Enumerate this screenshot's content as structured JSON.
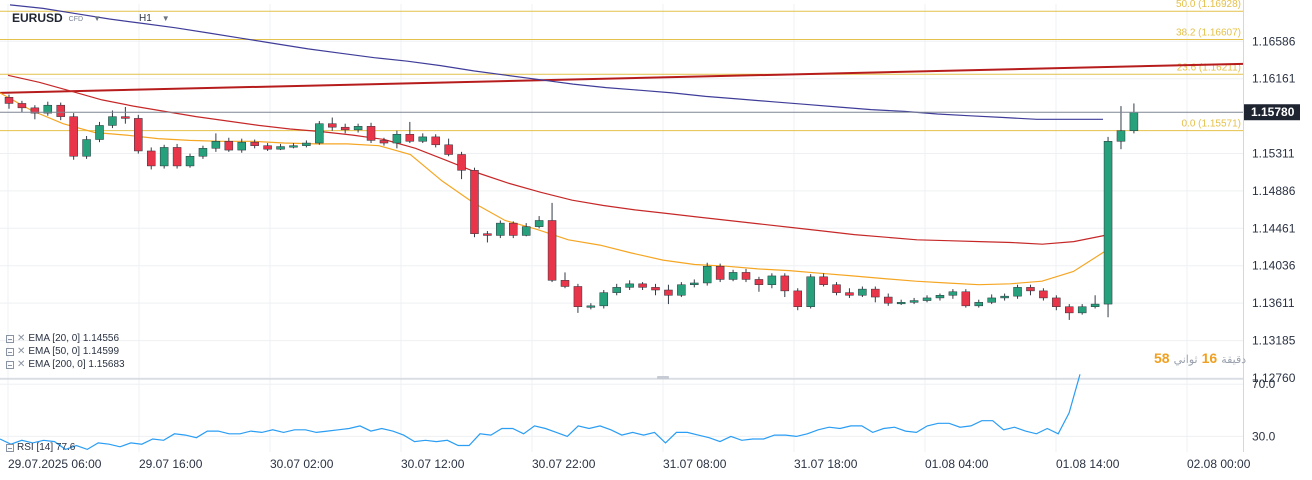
{
  "header": {
    "symbol": "EURUSD",
    "symbol_type": "CFD",
    "timeframe": "H1"
  },
  "indicators": [
    {
      "label": "EMA [20, 0] 1.14556",
      "color": "#f5a623"
    },
    {
      "label": "EMA [50, 0] 1.14599",
      "color": "#c62828"
    },
    {
      "label": "EMA [200, 0] 1.15683",
      "color": "#3f3d99"
    }
  ],
  "rsi_label": "RSI [14] 77.6",
  "notice": {
    "part1": "58",
    "part2": "ثواني",
    "part3": "16",
    "part4": "دقيقة"
  },
  "fib_labels": [
    "50.0 (1.16928)",
    "38.2 (1.16607)",
    "23.6 (1.16211)",
    "0.0 (1.15571)"
  ],
  "colors": {
    "up": "#26a17b",
    "down": "#e8354a",
    "ema20": "#f5a623",
    "ema50": "#c62828",
    "ema200": "#3f3d99",
    "trend": "#b71c1c",
    "fib": "#e4c14a",
    "rsi": "#2a9df4"
  },
  "chart_data": [
    {
      "type": "candlestick",
      "title": "EURUSD H1",
      "ylim": [
        1.1276,
        1.1701
      ],
      "y_ticks": [
        "1.16586",
        "1.16161",
        "1.15311",
        "1.14886",
        "1.14461",
        "1.14036",
        "1.13611",
        "1.13185",
        "1.12760"
      ],
      "x_ticks": [
        "29.07.2025 06:00",
        "29.07 16:00",
        "30.07 02:00",
        "30.07 12:00",
        "30.07 22:00",
        "31.07 08:00",
        "31.07 18:00",
        "01.08 04:00",
        "01.08 14:00",
        "02.08 00:00"
      ],
      "last_price": "1.15780",
      "fibonacci_levels": [
        {
          "label": "50.0 (1.16928)",
          "value": 1.16928
        },
        {
          "label": "38.2 (1.16607)",
          "value": 1.16607
        },
        {
          "label": "23.6 (1.16211)",
          "value": 1.16211
        },
        {
          "label": "0.0 (1.15571)",
          "value": 1.15571
        }
      ],
      "trendline": [
        1.16,
        1.1633
      ],
      "candles": [
        [
          1.1595,
          1.1588,
          1.1598,
          1.1582
        ],
        [
          1.1588,
          1.1583,
          1.1591,
          1.1578
        ],
        [
          1.1583,
          1.1577,
          1.1586,
          1.157
        ],
        [
          1.1577,
          1.1586,
          1.159,
          1.1574
        ],
        [
          1.1586,
          1.1573,
          1.1589,
          1.1569
        ],
        [
          1.1573,
          1.1528,
          1.1577,
          1.1524
        ],
        [
          1.1528,
          1.1547,
          1.1551,
          1.1525
        ],
        [
          1.1547,
          1.1563,
          1.1567,
          1.1544
        ],
        [
          1.1563,
          1.1573,
          1.158,
          1.156
        ],
        [
          1.1573,
          1.1571,
          1.1584,
          1.1565
        ],
        [
          1.1571,
          1.1534,
          1.1575,
          1.1531
        ],
        [
          1.1534,
          1.1517,
          1.1538,
          1.1513
        ],
        [
          1.1517,
          1.1538,
          1.1541,
          1.1514
        ],
        [
          1.1538,
          1.1517,
          1.1542,
          1.1514
        ],
        [
          1.1517,
          1.1528,
          1.1531,
          1.1515
        ],
        [
          1.1528,
          1.1537,
          1.154,
          1.1525
        ],
        [
          1.1537,
          1.1545,
          1.1554,
          1.1533
        ],
        [
          1.1545,
          1.1535,
          1.1549,
          1.1533
        ],
        [
          1.1535,
          1.1544,
          1.1548,
          1.1532
        ],
        [
          1.1544,
          1.154,
          1.1547,
          1.1537
        ],
        [
          1.154,
          1.1536,
          1.1543,
          1.1534
        ],
        [
          1.1536,
          1.1539,
          1.1542,
          1.1535
        ],
        [
          1.1539,
          1.154,
          1.1543,
          1.1537
        ],
        [
          1.154,
          1.1543,
          1.1546,
          1.1538
        ],
        [
          1.1543,
          1.1565,
          1.1568,
          1.1541
        ],
        [
          1.1565,
          1.1561,
          1.1572,
          1.1557
        ],
        [
          1.1561,
          1.1558,
          1.1565,
          1.1554
        ],
        [
          1.1558,
          1.1562,
          1.1565,
          1.1555
        ],
        [
          1.1562,
          1.1546,
          1.1566,
          1.1543
        ],
        [
          1.1546,
          1.1543,
          1.1549,
          1.154
        ],
        [
          1.1543,
          1.1553,
          1.1557,
          1.1537
        ],
        [
          1.1553,
          1.1545,
          1.1567,
          1.1543
        ],
        [
          1.1545,
          1.155,
          1.1554,
          1.1543
        ],
        [
          1.155,
          1.1541,
          1.1553,
          1.1538
        ],
        [
          1.1541,
          1.153,
          1.1548,
          1.1528
        ],
        [
          1.153,
          1.1512,
          1.1533,
          1.1502
        ],
        [
          1.1512,
          1.144,
          1.1515,
          1.1436
        ],
        [
          1.144,
          1.1438,
          1.1443,
          1.143
        ],
        [
          1.1438,
          1.1452,
          1.1455,
          1.1435
        ],
        [
          1.1452,
          1.1438,
          1.1454,
          1.1435
        ],
        [
          1.1438,
          1.1448,
          1.1452,
          1.1437
        ],
        [
          1.1448,
          1.1455,
          1.146,
          1.1446
        ],
        [
          1.1455,
          1.1387,
          1.1475,
          1.1385
        ],
        [
          1.1387,
          1.138,
          1.1396,
          1.1378
        ],
        [
          1.138,
          1.1357,
          1.1383,
          1.135
        ],
        [
          1.1357,
          1.1358,
          1.1361,
          1.1354
        ],
        [
          1.1358,
          1.1373,
          1.1376,
          1.1355
        ],
        [
          1.1373,
          1.1379,
          1.1383,
          1.137
        ],
        [
          1.1379,
          1.1383,
          1.1387,
          1.1376
        ],
        [
          1.1383,
          1.1379,
          1.1385,
          1.1376
        ],
        [
          1.1379,
          1.1376,
          1.1383,
          1.137
        ],
        [
          1.1376,
          1.137,
          1.1382,
          1.136
        ],
        [
          1.137,
          1.1382,
          1.1385,
          1.1368
        ],
        [
          1.1382,
          1.1384,
          1.1388,
          1.1379
        ],
        [
          1.1384,
          1.1403,
          1.1407,
          1.1381
        ],
        [
          1.1403,
          1.1388,
          1.1406,
          1.1385
        ],
        [
          1.1388,
          1.1396,
          1.1399,
          1.1386
        ],
        [
          1.1396,
          1.1388,
          1.14,
          1.1385
        ],
        [
          1.1388,
          1.1382,
          1.1391,
          1.1374
        ],
        [
          1.1382,
          1.1392,
          1.1395,
          1.1378
        ],
        [
          1.1392,
          1.1375,
          1.1395,
          1.1368
        ],
        [
          1.1375,
          1.1357,
          1.1378,
          1.1353
        ],
        [
          1.1357,
          1.1391,
          1.1394,
          1.1355
        ],
        [
          1.1391,
          1.1382,
          1.1395,
          1.138
        ],
        [
          1.1382,
          1.1373,
          1.1385,
          1.137
        ],
        [
          1.1373,
          1.137,
          1.1378,
          1.1367
        ],
        [
          1.137,
          1.1377,
          1.138,
          1.1368
        ],
        [
          1.1377,
          1.1368,
          1.138,
          1.1362
        ],
        [
          1.1368,
          1.1361,
          1.1372,
          1.1358
        ],
        [
          1.1361,
          1.1362,
          1.1365,
          1.1359
        ],
        [
          1.1362,
          1.1364,
          1.1367,
          1.136
        ],
        [
          1.1364,
          1.1367,
          1.137,
          1.1362
        ],
        [
          1.1367,
          1.137,
          1.1372,
          1.1364
        ],
        [
          1.137,
          1.1374,
          1.1377,
          1.1366
        ],
        [
          1.1374,
          1.1358,
          1.1377,
          1.1356
        ],
        [
          1.1358,
          1.1362,
          1.1365,
          1.1356
        ],
        [
          1.1362,
          1.1367,
          1.1371,
          1.136
        ],
        [
          1.1367,
          1.1369,
          1.1372,
          1.1364
        ],
        [
          1.1369,
          1.1379,
          1.1382,
          1.1366
        ],
        [
          1.1379,
          1.1375,
          1.1382,
          1.137
        ],
        [
          1.1375,
          1.1367,
          1.1378,
          1.1364
        ],
        [
          1.1367,
          1.1357,
          1.137,
          1.1353
        ],
        [
          1.1357,
          1.135,
          1.136,
          1.1342
        ],
        [
          1.135,
          1.1357,
          1.136,
          1.1348
        ],
        [
          1.1357,
          1.136,
          1.137,
          1.1355
        ],
        [
          1.136,
          1.1545,
          1.155,
          1.1345
        ],
        [
          1.1545,
          1.1557,
          1.1585,
          1.1536
        ],
        [
          1.1557,
          1.1578,
          1.1588,
          1.1554
        ]
      ],
      "ema20": [
        1.16,
        1.158,
        1.1565,
        1.1555,
        1.1552,
        1.1548,
        1.1546,
        1.1545,
        1.1545,
        1.1543,
        1.1542,
        1.1542,
        1.154,
        1.153,
        1.15,
        1.1475,
        1.1455,
        1.1445,
        1.1433,
        1.1427,
        1.1418,
        1.141,
        1.1405,
        1.1403,
        1.14,
        1.1398,
        1.1395,
        1.1392,
        1.1389,
        1.1386,
        1.1384,
        1.1382,
        1.1383,
        1.1386,
        1.1397,
        1.142
      ],
      "ema50": [
        1.162,
        1.1612,
        1.1602,
        1.1592,
        1.1585,
        1.1579,
        1.1573,
        1.1568,
        1.1563,
        1.1559,
        1.1556,
        1.1552,
        1.1547,
        1.1537,
        1.1523,
        1.1509,
        1.1497,
        1.1487,
        1.1478,
        1.1472,
        1.1467,
        1.1463,
        1.1459,
        1.1455,
        1.1451,
        1.1447,
        1.1443,
        1.1439,
        1.1436,
        1.1433,
        1.1432,
        1.1431,
        1.143,
        1.1428,
        1.1431,
        1.1438
      ],
      "ema200": [
        1.17,
        1.1696,
        1.169,
        1.1684,
        1.1679,
        1.1674,
        1.1668,
        1.1662,
        1.1656,
        1.165,
        1.1645,
        1.164,
        1.1636,
        1.1631,
        1.1625,
        1.162,
        1.1615,
        1.161,
        1.1606,
        1.1603,
        1.16,
        1.1596,
        1.1593,
        1.159,
        1.1587,
        1.1584,
        1.1581,
        1.1579,
        1.1576,
        1.1574,
        1.1572,
        1.157,
        1.157,
        1.157
      ]
    },
    {
      "type": "line",
      "title": "RSI [14] 77.6",
      "ylim": [
        18,
        74
      ],
      "y_ticks": [
        "70.0",
        "30.0"
      ],
      "values": [
        28,
        24,
        27,
        25,
        27,
        26,
        20,
        23,
        20,
        25,
        24,
        22,
        25,
        24,
        28,
        27,
        32,
        31,
        29,
        34,
        34,
        32,
        32,
        34,
        33,
        35,
        33,
        35,
        35,
        33,
        34,
        35,
        36,
        38,
        34,
        36,
        34,
        31,
        26,
        27,
        26,
        27,
        23,
        23,
        32,
        31,
        36,
        36,
        32,
        38,
        36,
        33,
        30,
        38,
        36,
        38,
        35,
        31,
        33,
        31,
        33,
        25,
        33,
        33,
        31,
        29,
        26,
        30,
        27,
        28,
        28,
        31,
        31,
        30,
        32,
        35,
        37,
        36,
        38,
        38,
        33,
        36,
        37,
        34,
        33,
        38,
        40,
        40,
        37,
        38,
        42,
        42,
        35,
        37,
        34,
        32,
        36,
        32,
        48,
        77.6
      ]
    }
  ]
}
